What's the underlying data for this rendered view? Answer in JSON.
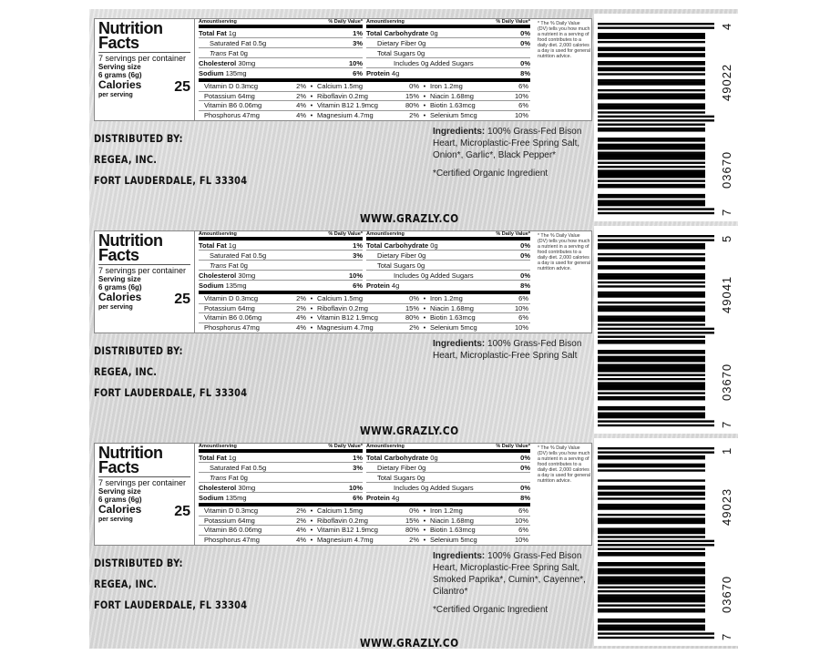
{
  "nutrition": {
    "title_line1": "Nutrition",
    "title_line2": "Facts",
    "servings": "7 servings per container",
    "serving_size_label": "Serving size",
    "serving_size": "6 grams (6g)",
    "calories_label": "Calories",
    "calories_sub": "per serving",
    "calories": "25",
    "amount_header": "Amount/serving",
    "dv_header": "% Daily Value*",
    "left_rows": [
      {
        "bold": "Total Fat",
        "val": " 1g",
        "dv": "1%",
        "indent": 0
      },
      {
        "bold": "",
        "val": "Saturated Fat 0.5g",
        "dv": "3%",
        "indent": 1
      },
      {
        "bold": "",
        "val": "Trans Fat 0g",
        "dv": "",
        "indent": 1
      },
      {
        "bold": "Cholesterol",
        "val": " 30mg",
        "dv": "10%",
        "indent": 0
      },
      {
        "bold": "Sodium",
        "val": " 135mg",
        "dv": "6%",
        "indent": 0
      }
    ],
    "right_rows": [
      {
        "bold": "Total Carbohydrate",
        "val": " 0g",
        "dv": "0%",
        "indent": 0
      },
      {
        "bold": "",
        "val": "Dietary Fiber 0g",
        "dv": "0%",
        "indent": 1
      },
      {
        "bold": "",
        "val": "Total Sugars 0g",
        "dv": "",
        "indent": 1
      },
      {
        "bold": "",
        "val": "Includes 0g Added Sugars",
        "dv": "0%",
        "indent": 2
      },
      {
        "bold": "Protein",
        "val": " 4g",
        "dv": "8%",
        "indent": 0
      }
    ],
    "vitamins": [
      [
        [
          "Vitamin D 0.3mcg",
          "2%"
        ],
        [
          "Calcium 1.5mg",
          "0%"
        ],
        [
          "Iron 1.2mg",
          "6%"
        ]
      ],
      [
        [
          "Potassium 64mg",
          "2%"
        ],
        [
          "Riboflavin 0.2mg",
          "15%"
        ],
        [
          "Niacin 1.68mg",
          "10%"
        ]
      ],
      [
        [
          "Vitamin B6 0.06mg",
          "4%"
        ],
        [
          "Vitamin B12 1.9mcg",
          "80%"
        ],
        [
          "Biotin 1.63mcg",
          "6%"
        ]
      ],
      [
        [
          "Phosphorus 47mg",
          "4%"
        ],
        [
          "Magnesium 4.7mg",
          "2%"
        ],
        [
          "Selenium 5mcg",
          "10%"
        ]
      ]
    ],
    "bullet": "•",
    "footnote": "* The % Daily Value (DV) tells you how much a nutrient in a serving of food contributes to a daily diet. 2,000 calories a day is used for general nutrition advice."
  },
  "distributor": {
    "line1": "DISTRIBUTED BY:",
    "line2": "REGEA, INC.",
    "line3": "FORT LAUDERDALE, FL 33304"
  },
  "website": "WWW.GRAZLY.CO",
  "ingredients_label": "Ingredients:",
  "labels": [
    {
      "ingredients": " 100% Grass-Fed Bison Heart, Microplastic-Free Spring Salt, Onion*, Garlic*, Black Pepper*",
      "note": "*Certified Organic Ingredient",
      "barcode": {
        "first": "7",
        "left": "03670",
        "right": "49022",
        "check": "4"
      }
    },
    {
      "ingredients": " 100% Grass-Fed Bison Heart, Microplastic-Free Spring Salt",
      "note": "",
      "barcode": {
        "first": "7",
        "left": "03670",
        "right": "49041",
        "check": "5"
      }
    },
    {
      "ingredients": " 100% Grass-Fed Bison Heart, Microplastic-Free Spring Salt, Smoked Paprika*, Cumin*, Cayenne*, Cilantro*",
      "note": "*Certified Organic Ingredient",
      "barcode": {
        "first": "7",
        "left": "03670",
        "right": "49023",
        "check": "1"
      }
    }
  ]
}
